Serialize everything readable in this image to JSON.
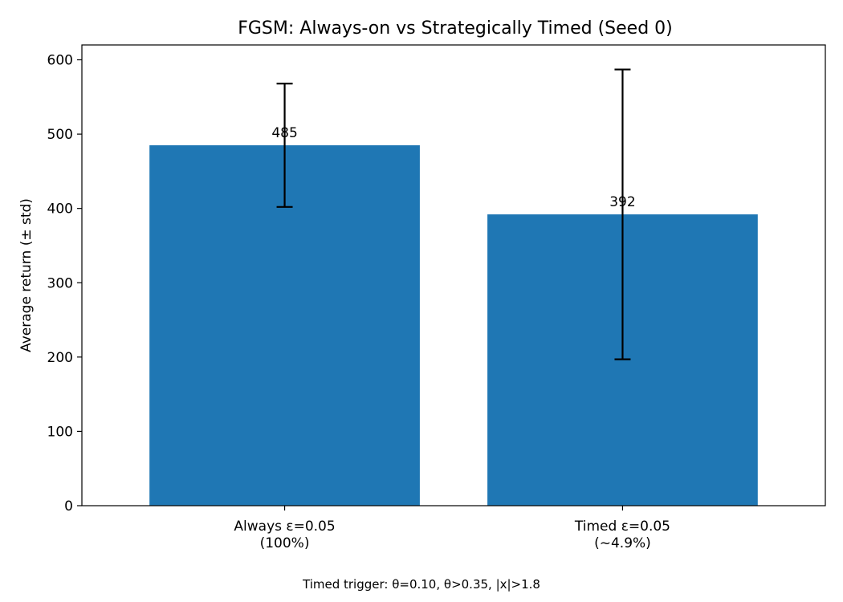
{
  "chart_data": {
    "type": "bar",
    "title": "FGSM: Always-on vs Strategically Timed (Seed 0)",
    "xlabel": "",
    "ylabel": "Average return (± std)",
    "categories": [
      [
        "Always ε=0.05",
        "(100%)"
      ],
      [
        "Timed ε=0.05",
        "(~4.9%)"
      ]
    ],
    "values": [
      485,
      392
    ],
    "errors": [
      83,
      195
    ],
    "data_labels": [
      "485",
      "392"
    ],
    "ylim": [
      0,
      620
    ],
    "yticks": [
      0,
      100,
      200,
      300,
      400,
      500,
      600
    ],
    "grid": false,
    "bar_color": "#1f77b4",
    "error_color": "#000000"
  },
  "footnote": "Timed trigger: θ=0.10, θ>0.35, |x|>1.8"
}
